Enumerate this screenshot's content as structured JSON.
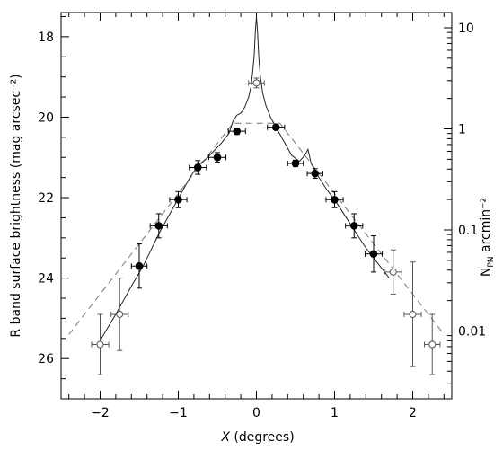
{
  "chart_data": {
    "type": "scatter",
    "xlabel": "X (degrees)",
    "xlabel_var": "X",
    "xlabel_rest": " (degrees)",
    "ylabel_left": "R band surface brightness (mag arcsec⁻²)",
    "ylabel_right_main": "N",
    "ylabel_right_sub": "PN",
    "ylabel_right_rest": " arcmin⁻²",
    "xlim": [
      -2.5,
      2.5
    ],
    "ylim_left": [
      27.0,
      17.4
    ],
    "y_left_inverted": true,
    "x_ticks": [
      -2,
      -1,
      0,
      1,
      2
    ],
    "x_tick_labels": [
      "−2",
      "−1",
      "0",
      "1",
      "2"
    ],
    "y_left_ticks": [
      18,
      20,
      22,
      24,
      26
    ],
    "y_left_tick_labels": [
      "18",
      "20",
      "22",
      "24",
      "26"
    ],
    "y_right_scale": "log",
    "y_right_ticks": [
      10,
      1,
      0.1,
      0.01
    ],
    "y_right_tick_labels": [
      "10",
      "1",
      "0.1",
      "0.01"
    ],
    "grid": false,
    "series": [
      {
        "marker": "filled-circle",
        "points": [
          {
            "x": -1.5,
            "y": 23.7,
            "xerr": 0.1,
            "yerr": 0.55
          },
          {
            "x": -1.25,
            "y": 22.7,
            "xerr": 0.11,
            "yerr": 0.3
          },
          {
            "x": -1.0,
            "y": 22.05,
            "xerr": 0.11,
            "yerr": 0.2
          },
          {
            "x": -0.75,
            "y": 21.25,
            "xerr": 0.11,
            "yerr": 0.17
          },
          {
            "x": -0.5,
            "y": 21.0,
            "xerr": 0.11,
            "yerr": 0.12
          },
          {
            "x": -0.25,
            "y": 20.35,
            "xerr": 0.11,
            "yerr": 0.08
          },
          {
            "x": 0.25,
            "y": 20.25,
            "xerr": 0.11,
            "yerr": 0.06
          },
          {
            "x": 0.5,
            "y": 21.15,
            "xerr": 0.1,
            "yerr": 0.08
          },
          {
            "x": 0.75,
            "y": 21.4,
            "xerr": 0.1,
            "yerr": 0.12
          },
          {
            "x": 1.0,
            "y": 22.05,
            "xerr": 0.11,
            "yerr": 0.2
          },
          {
            "x": 1.25,
            "y": 22.7,
            "xerr": 0.11,
            "yerr": 0.3
          },
          {
            "x": 1.5,
            "y": 23.4,
            "xerr": 0.11,
            "yerr": 0.45
          }
        ]
      },
      {
        "marker": "open-circle",
        "points": [
          {
            "x": -2.0,
            "y": 25.65,
            "xerr": 0.11,
            "yerr": 0.75
          },
          {
            "x": -1.75,
            "y": 24.9,
            "xerr": 0.11,
            "yerr": 0.9
          },
          {
            "x": 0.0,
            "y": 19.15,
            "xerr": 0.1,
            "yerr": 0.12
          },
          {
            "x": 1.75,
            "y": 23.85,
            "xerr": 0.11,
            "yerr": 0.55
          },
          {
            "x": 2.0,
            "y": 24.9,
            "xerr": 0.11,
            "yerr": 1.3
          },
          {
            "x": 2.25,
            "y": 25.65,
            "xerr": 0.1,
            "yerr": 0.75
          }
        ]
      },
      {
        "style": "dashed-line",
        "x": [
          -2.4,
          -0.3,
          0.3,
          2.4
        ],
        "y": [
          25.4,
          20.15,
          20.15,
          25.4
        ]
      },
      {
        "style": "solid-line",
        "x": [
          -2.0,
          -1.8,
          -1.6,
          -1.45,
          -1.35,
          -1.25,
          -1.15,
          -1.05,
          -0.95,
          -0.85,
          -0.75,
          -0.65,
          -0.55,
          -0.45,
          -0.35,
          -0.3,
          -0.25,
          -0.2,
          -0.15,
          -0.1,
          -0.07,
          -0.05,
          -0.03,
          -0.015,
          0.0,
          0.015,
          0.03,
          0.05,
          0.08,
          0.12,
          0.18,
          0.25,
          0.35,
          0.45,
          0.55,
          0.62,
          0.66,
          0.7,
          0.8,
          0.9,
          1.0,
          1.1,
          1.2,
          1.3,
          1.4,
          1.5,
          1.6,
          1.7
        ],
        "y": [
          25.55,
          24.9,
          24.2,
          23.7,
          23.3,
          22.9,
          22.55,
          22.2,
          21.85,
          21.5,
          21.2,
          21.05,
          20.85,
          20.65,
          20.4,
          20.1,
          19.95,
          19.9,
          19.75,
          19.5,
          19.25,
          18.9,
          18.5,
          17.9,
          17.5,
          17.9,
          18.5,
          19.0,
          19.4,
          19.7,
          20.0,
          20.25,
          20.6,
          20.95,
          21.1,
          20.95,
          20.8,
          21.15,
          21.5,
          21.8,
          22.05,
          22.35,
          22.65,
          22.95,
          23.25,
          23.5,
          23.75,
          24.0
        ]
      }
    ]
  }
}
